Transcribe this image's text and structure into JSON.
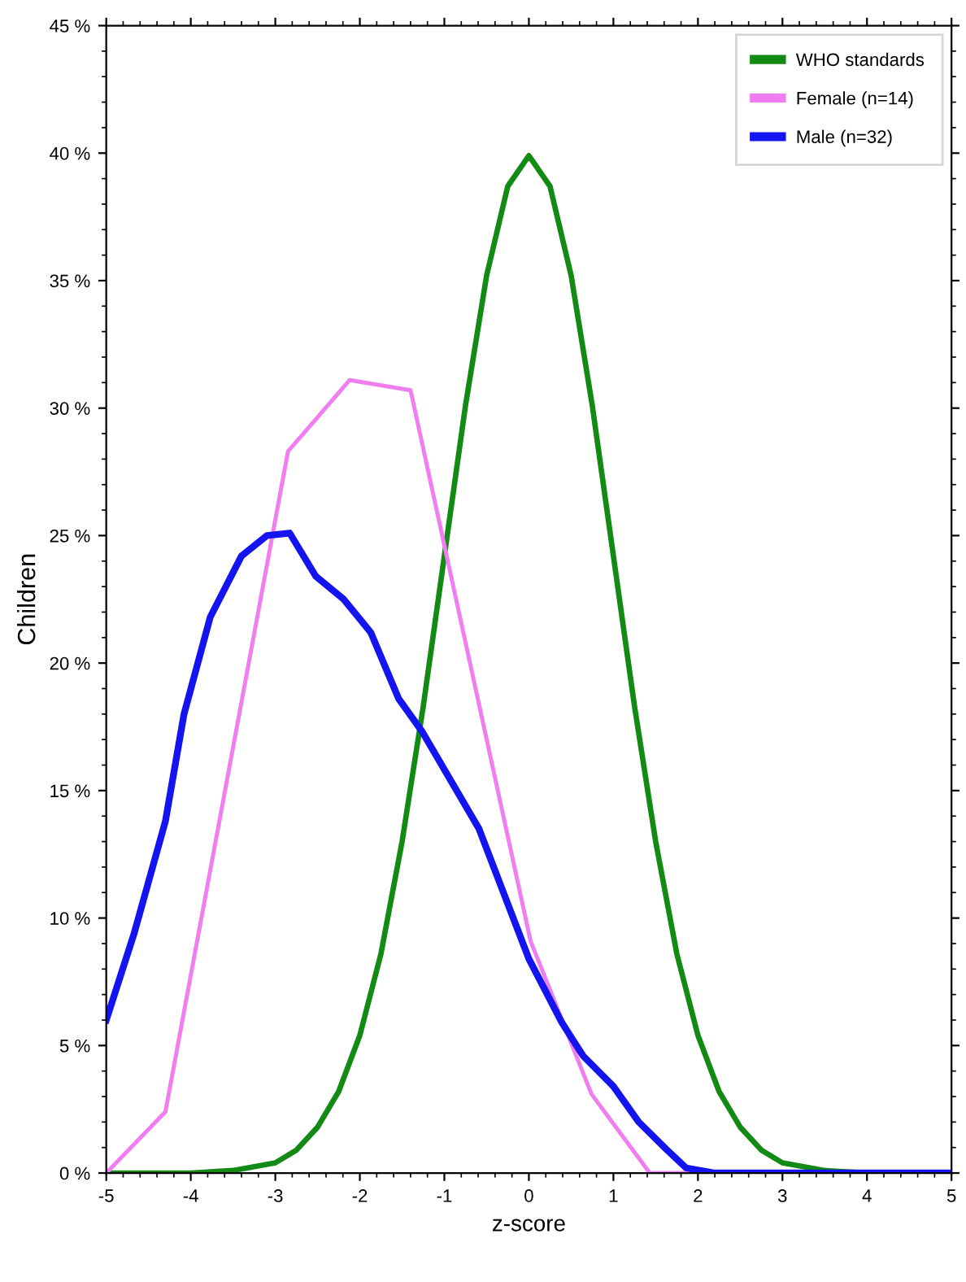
{
  "chart_data": {
    "type": "line",
    "xlabel": "z-score",
    "ylabel": "Children",
    "xlim": [
      -5,
      5
    ],
    "xticks": [
      -5,
      -4,
      -3,
      -2,
      -1,
      0,
      1,
      2,
      3,
      4,
      5
    ],
    "ylim": [
      0,
      45
    ],
    "yticks": [
      {
        "value": 0,
        "label": "0 %"
      },
      {
        "value": 5,
        "label": "5 %"
      },
      {
        "value": 10,
        "label": "10 %"
      },
      {
        "value": 15,
        "label": "15 %"
      },
      {
        "value": 20,
        "label": "20 %"
      },
      {
        "value": 25,
        "label": "25 %"
      },
      {
        "value": 30,
        "label": "30 %"
      },
      {
        "value": 35,
        "label": "35 %"
      },
      {
        "value": 40,
        "label": "40 %"
      },
      {
        "value": 45,
        "label": "45 %"
      }
    ],
    "grid": false,
    "legend": "top right",
    "marker": "none",
    "line_style": "solid",
    "series": [
      {
        "name": "WHO standards",
        "color": "#138a13",
        "x": [
          -5,
          -4.5,
          -4,
          -3.5,
          -3,
          -2.75,
          -2.5,
          -2.25,
          -2,
          -1.75,
          -1.5,
          -1.25,
          -1,
          -0.75,
          -0.5,
          -0.25,
          0,
          0.25,
          0.5,
          0.75,
          1,
          1.25,
          1.5,
          1.75,
          2,
          2.25,
          2.5,
          2.75,
          3,
          3.5,
          4
        ],
        "values": [
          0,
          0,
          0,
          0.1,
          0.4,
          0.9,
          1.8,
          3.2,
          5.4,
          8.6,
          13,
          18.3,
          24.2,
          30.1,
          35.2,
          38.7,
          39.9,
          38.7,
          35.2,
          30.1,
          24.2,
          18.3,
          13,
          8.6,
          5.4,
          3.2,
          1.8,
          0.9,
          0.4,
          0.1,
          0
        ]
      },
      {
        "name": "Female (n=14)",
        "color": "#f07ef0",
        "x": [
          -5,
          -4.3,
          -2.85,
          -2.12,
          -1.4,
          0.02,
          0.74,
          1.43,
          5
        ],
        "values": [
          0,
          2.4,
          28.3,
          31.1,
          30.7,
          9.1,
          3.1,
          0,
          0
        ]
      },
      {
        "name": "Male (n=32)",
        "color": "#1414f0",
        "x": [
          -5,
          -4.67,
          -4.3,
          -4.08,
          -3.77,
          -3.4,
          -3.1,
          -2.83,
          -2.52,
          -2.19,
          -1.87,
          -1.54,
          -1.26,
          -0.59,
          0,
          0.39,
          0.64,
          1.0,
          1.3,
          1.62,
          1.86,
          2.2,
          5
        ],
        "values": [
          6.0,
          9.4,
          13.8,
          18.0,
          21.8,
          24.2,
          25.0,
          25.1,
          23.4,
          22.5,
          21.2,
          18.6,
          17.3,
          13.5,
          8.4,
          5.9,
          4.6,
          3.4,
          2.0,
          0.95,
          0.2,
          0,
          0
        ]
      }
    ]
  }
}
